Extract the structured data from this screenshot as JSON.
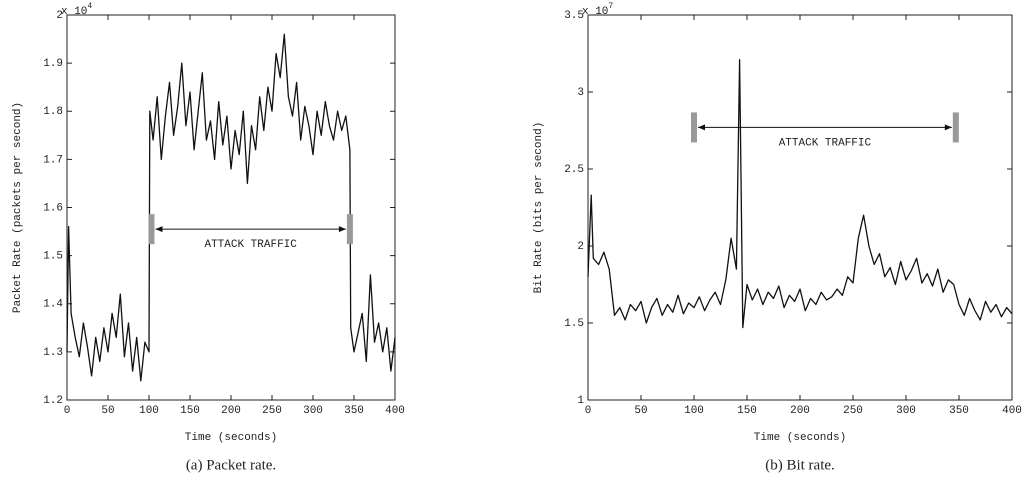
{
  "chart_data": [
    {
      "type": "line",
      "caption": "(a)  Packet rate.",
      "xlabel": "Time (seconds)",
      "ylabel": "Packet Rate (packets per second)",
      "y_multiplier": "x 10",
      "y_multiplier_exponent": "4",
      "color": "#111111",
      "xlim": [
        0,
        400
      ],
      "xticks": [
        0,
        50,
        100,
        150,
        200,
        250,
        300,
        350,
        400
      ],
      "ylim": [
        1.2,
        2
      ],
      "yticks": [
        1.2,
        1.3,
        1.4,
        1.5,
        1.6,
        1.7,
        1.8,
        1.9,
        2
      ],
      "annotation": {
        "text": "ATTACK TRAFFIC",
        "x_range": [
          103,
          345
        ],
        "y": 1.555
      },
      "x": [
        0,
        2,
        5,
        10,
        15,
        20,
        25,
        30,
        35,
        40,
        45,
        50,
        55,
        60,
        65,
        70,
        75,
        80,
        85,
        90,
        95,
        100,
        101,
        105,
        110,
        115,
        120,
        125,
        130,
        135,
        140,
        145,
        150,
        155,
        160,
        165,
        170,
        175,
        180,
        185,
        190,
        195,
        200,
        205,
        210,
        215,
        220,
        225,
        230,
        235,
        240,
        245,
        250,
        255,
        260,
        265,
        270,
        275,
        280,
        285,
        290,
        295,
        300,
        305,
        310,
        315,
        320,
        325,
        330,
        335,
        340,
        345,
        346,
        350,
        355,
        360,
        365,
        370,
        375,
        380,
        385,
        390,
        395,
        400
      ],
      "values": [
        1.3,
        1.56,
        1.38,
        1.33,
        1.29,
        1.36,
        1.31,
        1.25,
        1.33,
        1.28,
        1.35,
        1.3,
        1.38,
        1.33,
        1.42,
        1.29,
        1.36,
        1.26,
        1.33,
        1.24,
        1.32,
        1.3,
        1.8,
        1.74,
        1.83,
        1.7,
        1.79,
        1.86,
        1.75,
        1.81,
        1.9,
        1.77,
        1.84,
        1.72,
        1.8,
        1.88,
        1.74,
        1.78,
        1.7,
        1.82,
        1.73,
        1.79,
        1.68,
        1.76,
        1.71,
        1.8,
        1.65,
        1.77,
        1.72,
        1.83,
        1.76,
        1.85,
        1.8,
        1.92,
        1.87,
        1.96,
        1.83,
        1.79,
        1.86,
        1.74,
        1.81,
        1.77,
        1.71,
        1.8,
        1.75,
        1.82,
        1.77,
        1.74,
        1.8,
        1.76,
        1.79,
        1.72,
        1.35,
        1.3,
        1.34,
        1.38,
        1.28,
        1.46,
        1.32,
        1.36,
        1.3,
        1.35,
        1.26,
        1.33
      ]
    },
    {
      "type": "line",
      "caption": "(b)  Bit rate.",
      "xlabel": "Time (seconds)",
      "ylabel": "Bit Rate (bits per second)",
      "y_multiplier": "x 10",
      "y_multiplier_exponent": "7",
      "color": "#111111",
      "xlim": [
        0,
        400
      ],
      "xticks": [
        0,
        50,
        100,
        150,
        200,
        250,
        300,
        350,
        400
      ],
      "ylim": [
        1,
        3.5
      ],
      "yticks": [
        1,
        1.5,
        2,
        2.5,
        3,
        3.5
      ],
      "annotation": {
        "text": "ATTACK TRAFFIC",
        "x_range": [
          100,
          347
        ],
        "y": 2.77
      },
      "x": [
        0,
        3,
        5,
        10,
        15,
        20,
        25,
        30,
        35,
        40,
        45,
        50,
        55,
        60,
        65,
        70,
        75,
        80,
        85,
        90,
        95,
        100,
        105,
        110,
        115,
        120,
        125,
        130,
        135,
        140,
        143,
        146,
        150,
        155,
        160,
        165,
        170,
        175,
        180,
        185,
        190,
        195,
        200,
        205,
        210,
        215,
        220,
        225,
        230,
        235,
        240,
        245,
        250,
        255,
        260,
        265,
        270,
        275,
        280,
        285,
        290,
        295,
        300,
        305,
        310,
        315,
        320,
        325,
        330,
        335,
        340,
        345,
        350,
        355,
        360,
        365,
        370,
        375,
        380,
        385,
        390,
        395,
        400
      ],
      "values": [
        1.8,
        2.33,
        1.92,
        1.88,
        1.96,
        1.85,
        1.55,
        1.6,
        1.52,
        1.62,
        1.58,
        1.64,
        1.5,
        1.6,
        1.66,
        1.55,
        1.62,
        1.57,
        1.68,
        1.56,
        1.63,
        1.6,
        1.67,
        1.58,
        1.65,
        1.7,
        1.62,
        1.78,
        2.05,
        1.85,
        3.21,
        1.47,
        1.75,
        1.65,
        1.72,
        1.62,
        1.7,
        1.66,
        1.74,
        1.6,
        1.68,
        1.64,
        1.72,
        1.58,
        1.66,
        1.62,
        1.7,
        1.65,
        1.67,
        1.72,
        1.68,
        1.8,
        1.76,
        2.05,
        2.2,
        2.0,
        1.88,
        1.95,
        1.8,
        1.86,
        1.75,
        1.9,
        1.78,
        1.84,
        1.92,
        1.76,
        1.82,
        1.74,
        1.85,
        1.7,
        1.78,
        1.75,
        1.62,
        1.55,
        1.66,
        1.58,
        1.52,
        1.64,
        1.57,
        1.62,
        1.54,
        1.6,
        1.56
      ]
    }
  ]
}
